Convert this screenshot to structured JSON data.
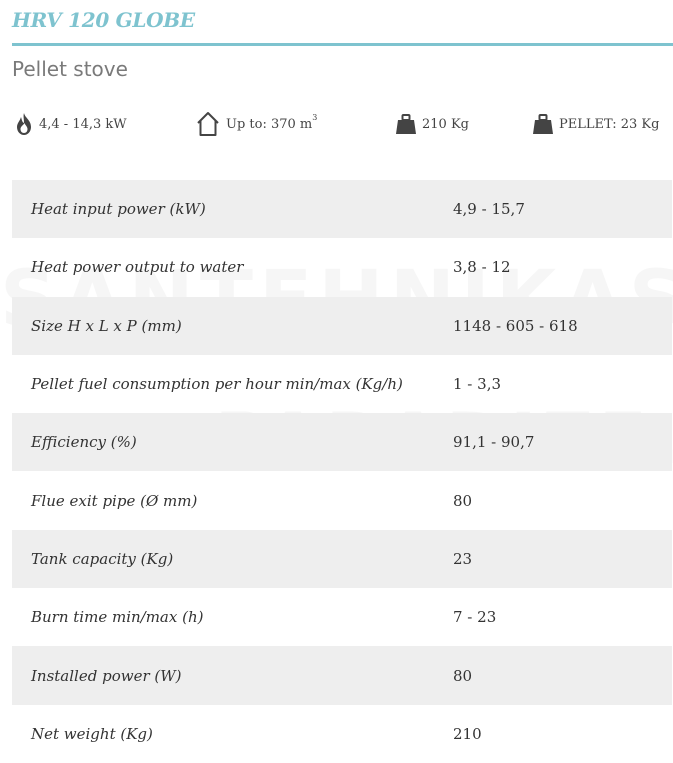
{
  "title": "HRV 120 GLOBE",
  "subtitle": "Pellet stove",
  "accent_color": "#7ec3cf",
  "features": [
    {
      "icon": "flame-icon",
      "text": "4,4 - 14,3 kW"
    },
    {
      "icon": "house-icon",
      "text": "Up to: 370 m",
      "sup": "3"
    },
    {
      "icon": "weight-icon",
      "text": "210 Kg"
    },
    {
      "icon": "weight-icon",
      "text": "PELLET: 23 Kg"
    }
  ],
  "specs": [
    {
      "label": "Heat input power (kW)",
      "value": "4,9 - 15,7"
    },
    {
      "label": "Heat power output to water",
      "value": "3,8 - 12"
    },
    {
      "label": "Size H x L x P (mm)",
      "value": "1148 - 605 - 618"
    },
    {
      "label": "Pellet fuel consumption per hour min/max (Kg/h)",
      "value": "1 - 3,3"
    },
    {
      "label": "Efficiency (%)",
      "value": "91,1 - 90,7"
    },
    {
      "label": "Flue exit pipe (Ø mm)",
      "value": "80"
    },
    {
      "label": "Tank capacity (Kg)",
      "value": "23"
    },
    {
      "label": "Burn time min/max (h)",
      "value": "7 - 23"
    },
    {
      "label": "Installed power (W)",
      "value": "80"
    },
    {
      "label": "Net weight (Kg)",
      "value": "210"
    }
  ],
  "watermark": {
    "line1": "SANTEHNIKAS",
    "line2": "PARADIZE.LV"
  }
}
